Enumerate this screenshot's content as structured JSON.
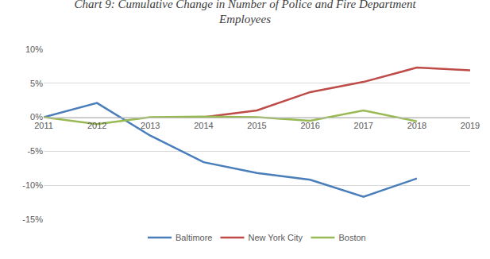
{
  "chart_data": {
    "type": "line",
    "title": "Chart 9: Cumulative Change in Number of Police and Fire Department Employees",
    "categories": [
      "2011",
      "2012",
      "2013",
      "2014",
      "2015",
      "2016",
      "2017",
      "2018",
      "2019"
    ],
    "series": [
      {
        "name": "Baltimore",
        "color": "#4a7ebb",
        "values": [
          0,
          2.1,
          -2.7,
          -6.6,
          -8.2,
          -9.2,
          -11.7,
          -9.0,
          null
        ]
      },
      {
        "name": "New York City",
        "color": "#be4b48",
        "values": [
          null,
          null,
          null,
          0,
          1.0,
          3.7,
          5.2,
          7.3,
          6.9
        ]
      },
      {
        "name": "Boston",
        "color": "#98b954",
        "values": [
          0,
          -1.0,
          0,
          0.1,
          0,
          -0.5,
          1.0,
          -0.6,
          null
        ]
      }
    ],
    "ylim": [
      -15,
      10
    ],
    "yticks": [
      {
        "value": -15,
        "label": "-15%"
      },
      {
        "value": -10,
        "label": "-10%"
      },
      {
        "value": -5,
        "label": "-5%"
      },
      {
        "value": 0,
        "label": "0%"
      },
      {
        "value": 5,
        "label": "5%"
      },
      {
        "value": 10,
        "label": "10%"
      }
    ],
    "grid": true,
    "legend": "bottom"
  }
}
